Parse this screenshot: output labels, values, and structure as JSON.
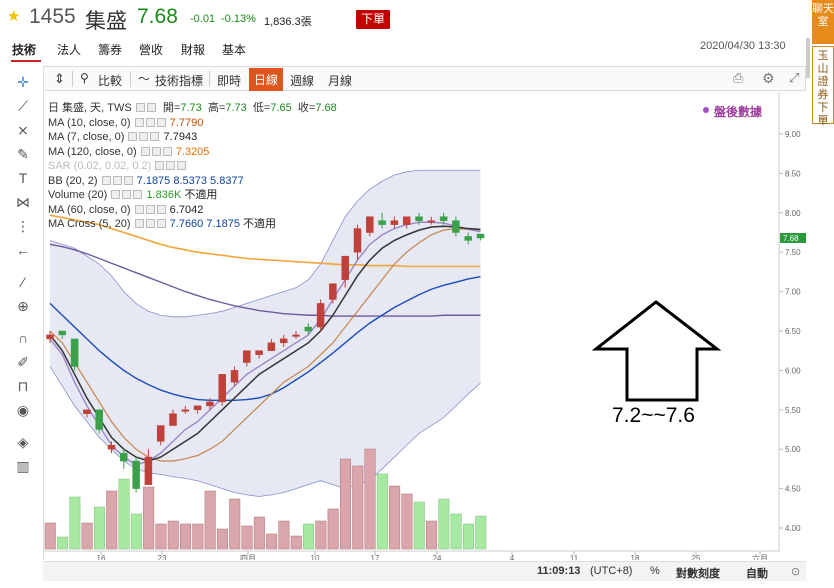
{
  "header": {
    "star": "★",
    "code": "1455",
    "name": "集盛",
    "price": "7.68",
    "change": "-0.01",
    "change_pct": "-0.13%",
    "volume": "1,836.3張",
    "order_button": "下單"
  },
  "side_tabs": {
    "chat": "聊天室",
    "broker": "玉山證券下單"
  },
  "nav_tabs": [
    "技術",
    "法人",
    "籌券",
    "營收",
    "財報",
    "基本"
  ],
  "timestamp": "2020/04/30 13:30",
  "toolbar": {
    "compare": "比較",
    "indicators": "技術指標",
    "realtime": "即時",
    "daily": "日線",
    "weekly": "週線",
    "monthly": "月線"
  },
  "legend": {
    "title_symbol": "日 集盛, 天, TWS",
    "ohlc": {
      "open_label": "開=",
      "open": "7.73",
      "high_label": "高=",
      "high": "7.73",
      "low_label": "低=",
      "low": "7.65",
      "close_label": "收=",
      "close": "7.68"
    },
    "rows": [
      {
        "label": "MA (10, close, 0)",
        "values": [
          "7.7790"
        ],
        "color": "#c05000"
      },
      {
        "label": "MA (7, close, 0)",
        "values": [
          "7.7943"
        ],
        "color": "#222222"
      },
      {
        "label": "MA (120, close, 0)",
        "values": [
          "7.3205"
        ],
        "color": "#e07000"
      },
      {
        "label": "SAR (0.02, 0.02, 0.2)",
        "values": [],
        "color": "#bbbbbb"
      },
      {
        "label": "BB (20, 2)",
        "values": [
          "7.1875",
          "8.5373",
          "5.8377"
        ],
        "color": "#1040a0"
      },
      {
        "label": "Volume (20)",
        "values": [
          "1.836K",
          "不適用"
        ],
        "color": "#2a9a2a"
      },
      {
        "label": "MA (60, close, 0)",
        "values": [
          "6.7042"
        ],
        "color": "#222222"
      },
      {
        "label": "MA Cross (5, 20)",
        "values": [
          "7.7660",
          "7.1875",
          "不適用"
        ],
        "color": "#1040a0"
      }
    ]
  },
  "post_market": "盤後數據",
  "chart_data": {
    "type": "candlestick",
    "ylim": [
      3.75,
      9.25
    ],
    "y_ticks": [
      "9.00",
      "8.50",
      "8.00",
      "7.50",
      "7.00",
      "6.50",
      "6.00",
      "5.50",
      "5.00",
      "4.50",
      "4.00"
    ],
    "x_ticks": [
      "16",
      "23",
      "四月",
      "10",
      "17",
      "24",
      "4",
      "11",
      "18",
      "25",
      "六月"
    ],
    "last_price_tag": "7.68",
    "candles": [
      {
        "o": 6.4,
        "c": 6.45,
        "h": 6.5,
        "l": 6.35
      },
      {
        "o": 6.5,
        "c": 6.45,
        "h": 6.5,
        "l": 6.4
      },
      {
        "o": 6.4,
        "c": 6.05,
        "h": 6.4,
        "l": 6.0
      },
      {
        "o": 5.45,
        "c": 5.5,
        "h": 5.5,
        "l": 5.4
      },
      {
        "o": 5.5,
        "c": 5.25,
        "h": 5.5,
        "l": 5.2
      },
      {
        "o": 5.0,
        "c": 5.05,
        "h": 5.1,
        "l": 4.95
      },
      {
        "o": 4.95,
        "c": 4.85,
        "h": 5.0,
        "l": 4.75
      },
      {
        "o": 4.85,
        "c": 4.5,
        "h": 4.9,
        "l": 4.45
      },
      {
        "o": 4.55,
        "c": 4.9,
        "h": 5.0,
        "l": 4.55
      },
      {
        "o": 5.1,
        "c": 5.3,
        "h": 5.3,
        "l": 5.05
      },
      {
        "o": 5.3,
        "c": 5.45,
        "h": 5.5,
        "l": 5.3
      },
      {
        "o": 5.5,
        "c": 5.5,
        "h": 5.55,
        "l": 5.45
      },
      {
        "o": 5.5,
        "c": 5.55,
        "h": 5.55,
        "l": 5.45
      },
      {
        "o": 5.55,
        "c": 5.6,
        "h": 5.65,
        "l": 5.5
      },
      {
        "o": 5.6,
        "c": 5.95,
        "h": 5.95,
        "l": 5.55
      },
      {
        "o": 5.85,
        "c": 6.0,
        "h": 6.05,
        "l": 5.8
      },
      {
        "o": 6.1,
        "c": 6.25,
        "h": 6.25,
        "l": 6.05
      },
      {
        "o": 6.2,
        "c": 6.25,
        "h": 6.25,
        "l": 6.15
      },
      {
        "o": 6.25,
        "c": 6.35,
        "h": 6.4,
        "l": 6.25
      },
      {
        "o": 6.35,
        "c": 6.4,
        "h": 6.45,
        "l": 6.3
      },
      {
        "o": 6.45,
        "c": 6.45,
        "h": 6.5,
        "l": 6.4
      },
      {
        "o": 6.55,
        "c": 6.5,
        "h": 6.6,
        "l": 6.45
      },
      {
        "o": 6.55,
        "c": 6.85,
        "h": 6.9,
        "l": 6.5
      },
      {
        "o": 6.9,
        "c": 7.1,
        "h": 7.1,
        "l": 6.85
      },
      {
        "o": 7.15,
        "c": 7.45,
        "h": 7.45,
        "l": 7.05
      },
      {
        "o": 7.5,
        "c": 7.8,
        "h": 7.85,
        "l": 7.4
      },
      {
        "o": 7.75,
        "c": 7.95,
        "h": 7.95,
        "l": 7.7
      },
      {
        "o": 7.9,
        "c": 7.85,
        "h": 8.0,
        "l": 7.8
      },
      {
        "o": 7.85,
        "c": 7.9,
        "h": 7.95,
        "l": 7.8
      },
      {
        "o": 7.85,
        "c": 7.95,
        "h": 7.95,
        "l": 7.8
      },
      {
        "o": 7.95,
        "c": 7.9,
        "h": 8.0,
        "l": 7.85
      },
      {
        "o": 7.9,
        "c": 7.9,
        "h": 7.95,
        "l": 7.85
      },
      {
        "o": 7.95,
        "c": 7.9,
        "h": 8.0,
        "l": 7.85
      },
      {
        "o": 7.9,
        "c": 7.75,
        "h": 7.95,
        "l": 7.7
      },
      {
        "o": 7.7,
        "c": 7.65,
        "h": 7.75,
        "l": 7.6
      },
      {
        "o": 7.73,
        "c": 7.68,
        "h": 7.73,
        "l": 7.65
      }
    ],
    "volume_heights": [
      0.26,
      0.12,
      0.52,
      0.26,
      0.42,
      0.58,
      0.7,
      0.35,
      0.62,
      0.25,
      0.28,
      0.25,
      0.25,
      0.58,
      0.2,
      0.5,
      0.23,
      0.32,
      0.15,
      0.28,
      0.13,
      0.25,
      0.28,
      0.4,
      0.9,
      0.83,
      1.0,
      0.75,
      0.63,
      0.55,
      0.47,
      0.28,
      0.5,
      0.35,
      0.25,
      0.33
    ],
    "ma10": [
      6.5,
      6.35,
      6.1,
      5.85,
      5.6,
      5.35,
      5.15,
      5.0,
      4.9,
      4.85,
      4.85,
      4.88,
      4.92,
      5.0,
      5.1,
      5.25,
      5.4,
      5.55,
      5.7,
      5.85,
      5.95,
      6.05,
      6.2,
      6.35,
      6.55,
      6.75,
      6.95,
      7.15,
      7.35,
      7.5,
      7.62,
      7.72,
      7.78,
      7.8,
      7.79,
      7.78
    ],
    "ma7": [
      6.45,
      6.25,
      5.95,
      5.65,
      5.4,
      5.15,
      5.0,
      4.9,
      4.85,
      4.9,
      5.0,
      5.1,
      5.2,
      5.35,
      5.5,
      5.65,
      5.8,
      5.95,
      6.05,
      6.15,
      6.25,
      6.35,
      6.5,
      6.7,
      6.95,
      7.2,
      7.4,
      7.55,
      7.65,
      7.72,
      7.78,
      7.82,
      7.83,
      7.82,
      7.8,
      7.79
    ],
    "ma7b": [
      6.4,
      6.2,
      5.85,
      5.55,
      5.3,
      5.05,
      4.9,
      4.8,
      4.85,
      4.95,
      5.1,
      5.25,
      5.35,
      5.5,
      5.65,
      5.8,
      5.95,
      6.05,
      6.15,
      6.25,
      6.35,
      6.45,
      6.65,
      6.9,
      7.15,
      7.4,
      7.6,
      7.72,
      7.8,
      7.85,
      7.88,
      7.88,
      7.87,
      7.83,
      7.79,
      7.76
    ],
    "ma120": [
      7.97,
      7.94,
      7.91,
      7.88,
      7.85,
      7.8,
      7.75,
      7.7,
      7.65,
      7.6,
      7.56,
      7.53,
      7.5,
      7.48,
      7.46,
      7.44,
      7.42,
      7.41,
      7.4,
      7.39,
      7.38,
      7.37,
      7.36,
      7.35,
      7.34,
      7.34,
      7.33,
      7.33,
      7.33,
      7.32,
      7.32,
      7.32,
      7.32,
      7.32,
      7.32,
      7.32
    ],
    "ma60": [
      7.6,
      7.57,
      7.53,
      7.48,
      7.42,
      7.36,
      7.3,
      7.24,
      7.18,
      7.12,
      7.06,
      7.0,
      6.95,
      6.9,
      6.86,
      6.82,
      6.79,
      6.76,
      6.74,
      6.72,
      6.71,
      6.7,
      6.7,
      6.69,
      6.69,
      6.69,
      6.69,
      6.69,
      6.69,
      6.69,
      6.69,
      6.69,
      6.7,
      6.7,
      6.7,
      6.7
    ],
    "bb_mid": [
      6.85,
      6.7,
      6.55,
      6.4,
      6.25,
      6.12,
      6.0,
      5.9,
      5.82,
      5.75,
      5.7,
      5.66,
      5.63,
      5.62,
      5.62,
      5.62,
      5.63,
      5.65,
      5.7,
      5.78,
      5.88,
      5.98,
      6.1,
      6.22,
      6.35,
      6.48,
      6.6,
      6.7,
      6.8,
      6.88,
      6.96,
      7.03,
      7.08,
      7.12,
      7.16,
      7.19
    ],
    "bb_up": [
      7.65,
      7.6,
      7.55,
      7.45,
      7.35,
      7.2,
      7.0,
      6.85,
      6.75,
      6.7,
      6.68,
      6.68,
      6.7,
      6.72,
      6.75,
      6.8,
      6.85,
      6.9,
      6.95,
      7.0,
      7.05,
      7.15,
      7.35,
      7.65,
      7.95,
      8.15,
      8.3,
      8.4,
      8.48,
      8.52,
      8.54,
      8.54,
      8.54,
      8.54,
      8.54,
      8.54
    ],
    "bb_low": [
      6.05,
      5.8,
      5.55,
      5.35,
      5.15,
      5.0,
      4.85,
      4.75,
      4.7,
      4.68,
      4.65,
      4.63,
      4.6,
      4.55,
      4.5,
      4.45,
      4.42,
      4.4,
      4.42,
      4.45,
      4.5,
      4.55,
      4.6,
      4.55,
      4.5,
      4.55,
      4.6,
      4.75,
      4.9,
      5.05,
      5.2,
      5.3,
      5.4,
      5.55,
      5.7,
      5.84
    ],
    "annotation": "7.2~~7.6"
  },
  "bottom_bar": {
    "time": "11:09:13",
    "tz": "(UTC+8)",
    "percent": "%",
    "log": "對數刻度",
    "auto": "自動"
  }
}
